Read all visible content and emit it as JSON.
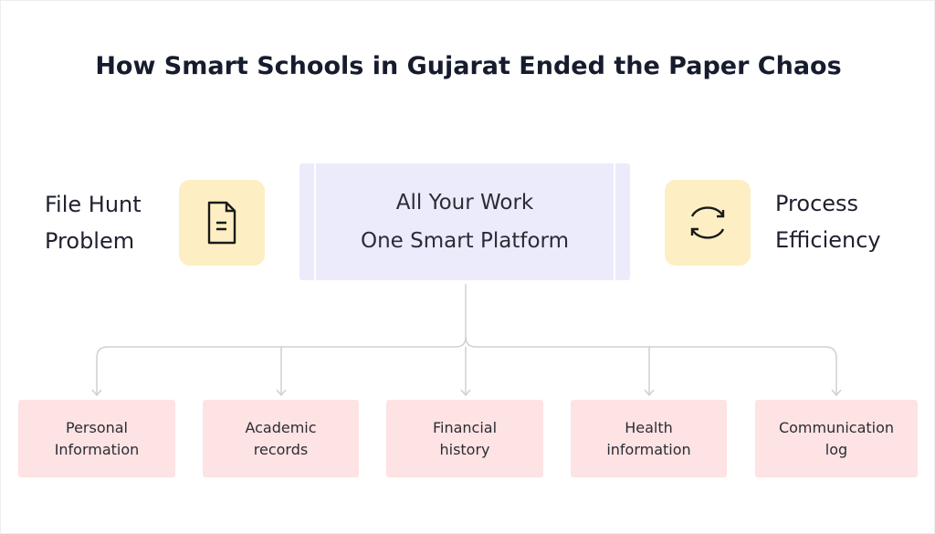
{
  "title": "How Smart Schools in Gujarat Ended the Paper Chaos",
  "left": {
    "line1": "File Hunt",
    "line2": "Problem",
    "icon": "document-icon"
  },
  "center": {
    "line1": "All Your Work",
    "line2": "One Smart Platform"
  },
  "right": {
    "line1": "Process",
    "line2": "Efficiency",
    "icon": "refresh-icon"
  },
  "cards": [
    {
      "line1": "Personal",
      "line2": "Information"
    },
    {
      "line1": "Academic",
      "line2": "records"
    },
    {
      "line1": "Financial",
      "line2": "history"
    },
    {
      "line1": "Health",
      "line2": "information"
    },
    {
      "line1": "Communication",
      "line2": "log"
    }
  ],
  "colors": {
    "icon_bg": "#fdefc3",
    "center_bg": "#ebebfc",
    "card_bg": "#fde3e3",
    "connector": "#d0d0d0"
  }
}
